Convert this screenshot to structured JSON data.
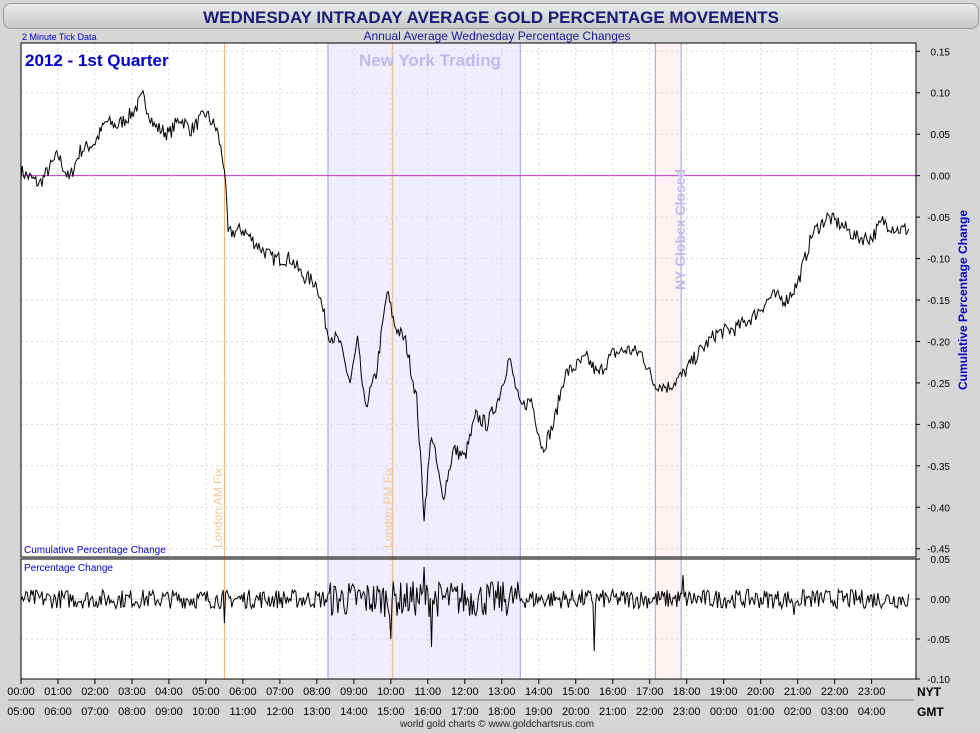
{
  "title": "WEDNESDAY INTRADAY AVERAGE GOLD PERCENTAGE MOVEMENTS",
  "subtitle": "Annual Average Wednesday Percentage Changes",
  "tick_note": "2 Minute Tick Data",
  "period_label": "2012 - 1st Quarter",
  "footer": "world gold charts © www.goldchartsrus.com",
  "timezones": {
    "top": "NYT",
    "bottom": "GMT"
  },
  "colors": {
    "title": "#1a1a7a",
    "label_blue": "#0000cc",
    "zero_line": "#cc33cc",
    "fix_line": "#f0b070",
    "ny_zone": "#eeeeff",
    "ny_zone_border": "#9a9ae6",
    "globex_zone": "#fff2f2",
    "annotation": "#c0b8f0",
    "fix_text": "#f2c896"
  },
  "annotations": {
    "new_york": "New York Trading",
    "globex": "NY Globex Closed",
    "am_fix": "London AM Fix",
    "pm_fix": "London PM Fix"
  },
  "chart_data": [
    {
      "type": "line",
      "name": "cumulative",
      "label": "Cumulative Percentage Change",
      "ylabel": "Cumulative Percentage Change",
      "ylim": [
        -0.46,
        0.16
      ],
      "yticks": [
        "0.15",
        "0.10",
        "0.05",
        "0.00",
        "-0.05",
        "-0.10",
        "-0.15",
        "-0.20",
        "-0.25",
        "-0.30",
        "-0.35",
        "-0.40",
        "-0.45"
      ],
      "x_nyt": [
        "00:00",
        "01:00",
        "02:00",
        "03:00",
        "04:00",
        "05:00",
        "06:00",
        "07:00",
        "08:00",
        "09:00",
        "10:00",
        "11:00",
        "12:00",
        "13:00",
        "14:00",
        "15:00",
        "16:00",
        "17:00",
        "18:00",
        "19:00",
        "20:00",
        "21:00",
        "22:00",
        "23:00"
      ],
      "x_gmt": [
        "05:00",
        "06:00",
        "07:00",
        "08:00",
        "09:00",
        "10:00",
        "11:00",
        "12:00",
        "13:00",
        "14:00",
        "15:00",
        "16:00",
        "17:00",
        "18:00",
        "19:00",
        "20:00",
        "21:00",
        "22:00",
        "23:00",
        "00:00",
        "01:00",
        "02:00",
        "03:00",
        "04:00"
      ],
      "points": [
        [
          0,
          0.005
        ],
        [
          0.5,
          -0.01
        ],
        [
          1,
          0.025
        ],
        [
          1.3,
          -0.005
        ],
        [
          1.6,
          0.03
        ],
        [
          2,
          0.04
        ],
        [
          2.3,
          0.065
        ],
        [
          2.6,
          0.06
        ],
        [
          3,
          0.075
        ],
        [
          3.3,
          0.095
        ],
        [
          3.6,
          0.06
        ],
        [
          4,
          0.05
        ],
        [
          4.3,
          0.07
        ],
        [
          4.6,
          0.055
        ],
        [
          5,
          0.075
        ],
        [
          5.3,
          0.055
        ],
        [
          5.5,
          0.01
        ],
        [
          5.6,
          -0.07
        ],
        [
          6,
          -0.065
        ],
        [
          6.3,
          -0.08
        ],
        [
          6.8,
          -0.1
        ],
        [
          7.3,
          -0.1
        ],
        [
          7.6,
          -0.12
        ],
        [
          8,
          -0.13
        ],
        [
          8.3,
          -0.19
        ],
        [
          8.6,
          -0.2
        ],
        [
          8.9,
          -0.25
        ],
        [
          9.1,
          -0.2
        ],
        [
          9.3,
          -0.28
        ],
        [
          9.6,
          -0.24
        ],
        [
          9.9,
          -0.14
        ],
        [
          10.1,
          -0.18
        ],
        [
          10.4,
          -0.2
        ],
        [
          10.7,
          -0.27
        ],
        [
          10.9,
          -0.41
        ],
        [
          11.1,
          -0.31
        ],
        [
          11.4,
          -0.39
        ],
        [
          11.7,
          -0.33
        ],
        [
          12,
          -0.34
        ],
        [
          12.3,
          -0.29
        ],
        [
          12.6,
          -0.3
        ],
        [
          12.9,
          -0.27
        ],
        [
          13.2,
          -0.22
        ],
        [
          13.5,
          -0.28
        ],
        [
          13.8,
          -0.27
        ],
        [
          14.1,
          -0.33
        ],
        [
          14.4,
          -0.3
        ],
        [
          14.7,
          -0.24
        ],
        [
          15,
          -0.23
        ],
        [
          15.3,
          -0.22
        ],
        [
          15.6,
          -0.24
        ],
        [
          16,
          -0.215
        ],
        [
          16.4,
          -0.21
        ],
        [
          16.8,
          -0.215
        ],
        [
          17.1,
          -0.25
        ],
        [
          17.5,
          -0.255
        ],
        [
          17.9,
          -0.24
        ],
        [
          18.3,
          -0.215
        ],
        [
          18.8,
          -0.19
        ],
        [
          19.3,
          -0.185
        ],
        [
          19.8,
          -0.17
        ],
        [
          20.3,
          -0.145
        ],
        [
          20.7,
          -0.15
        ],
        [
          21,
          -0.13
        ],
        [
          21.4,
          -0.07
        ],
        [
          21.8,
          -0.05
        ],
        [
          22.2,
          -0.06
        ],
        [
          22.6,
          -0.075
        ],
        [
          23,
          -0.075
        ],
        [
          23.3,
          -0.055
        ],
        [
          23.7,
          -0.065
        ]
      ]
    },
    {
      "type": "line",
      "name": "percentage",
      "label": "Percentage Change",
      "ylim": [
        -0.1,
        0.05
      ],
      "yticks": [
        "0.05",
        "0.00",
        "-0.05",
        "-0.10"
      ],
      "spikes": [
        [
          5.5,
          -0.03
        ],
        [
          10,
          -0.05
        ],
        [
          10.9,
          0.04
        ],
        [
          11.1,
          -0.06
        ],
        [
          15.5,
          -0.065
        ],
        [
          17.9,
          0.03
        ],
        [
          20.9,
          -0.02
        ]
      ]
    }
  ]
}
